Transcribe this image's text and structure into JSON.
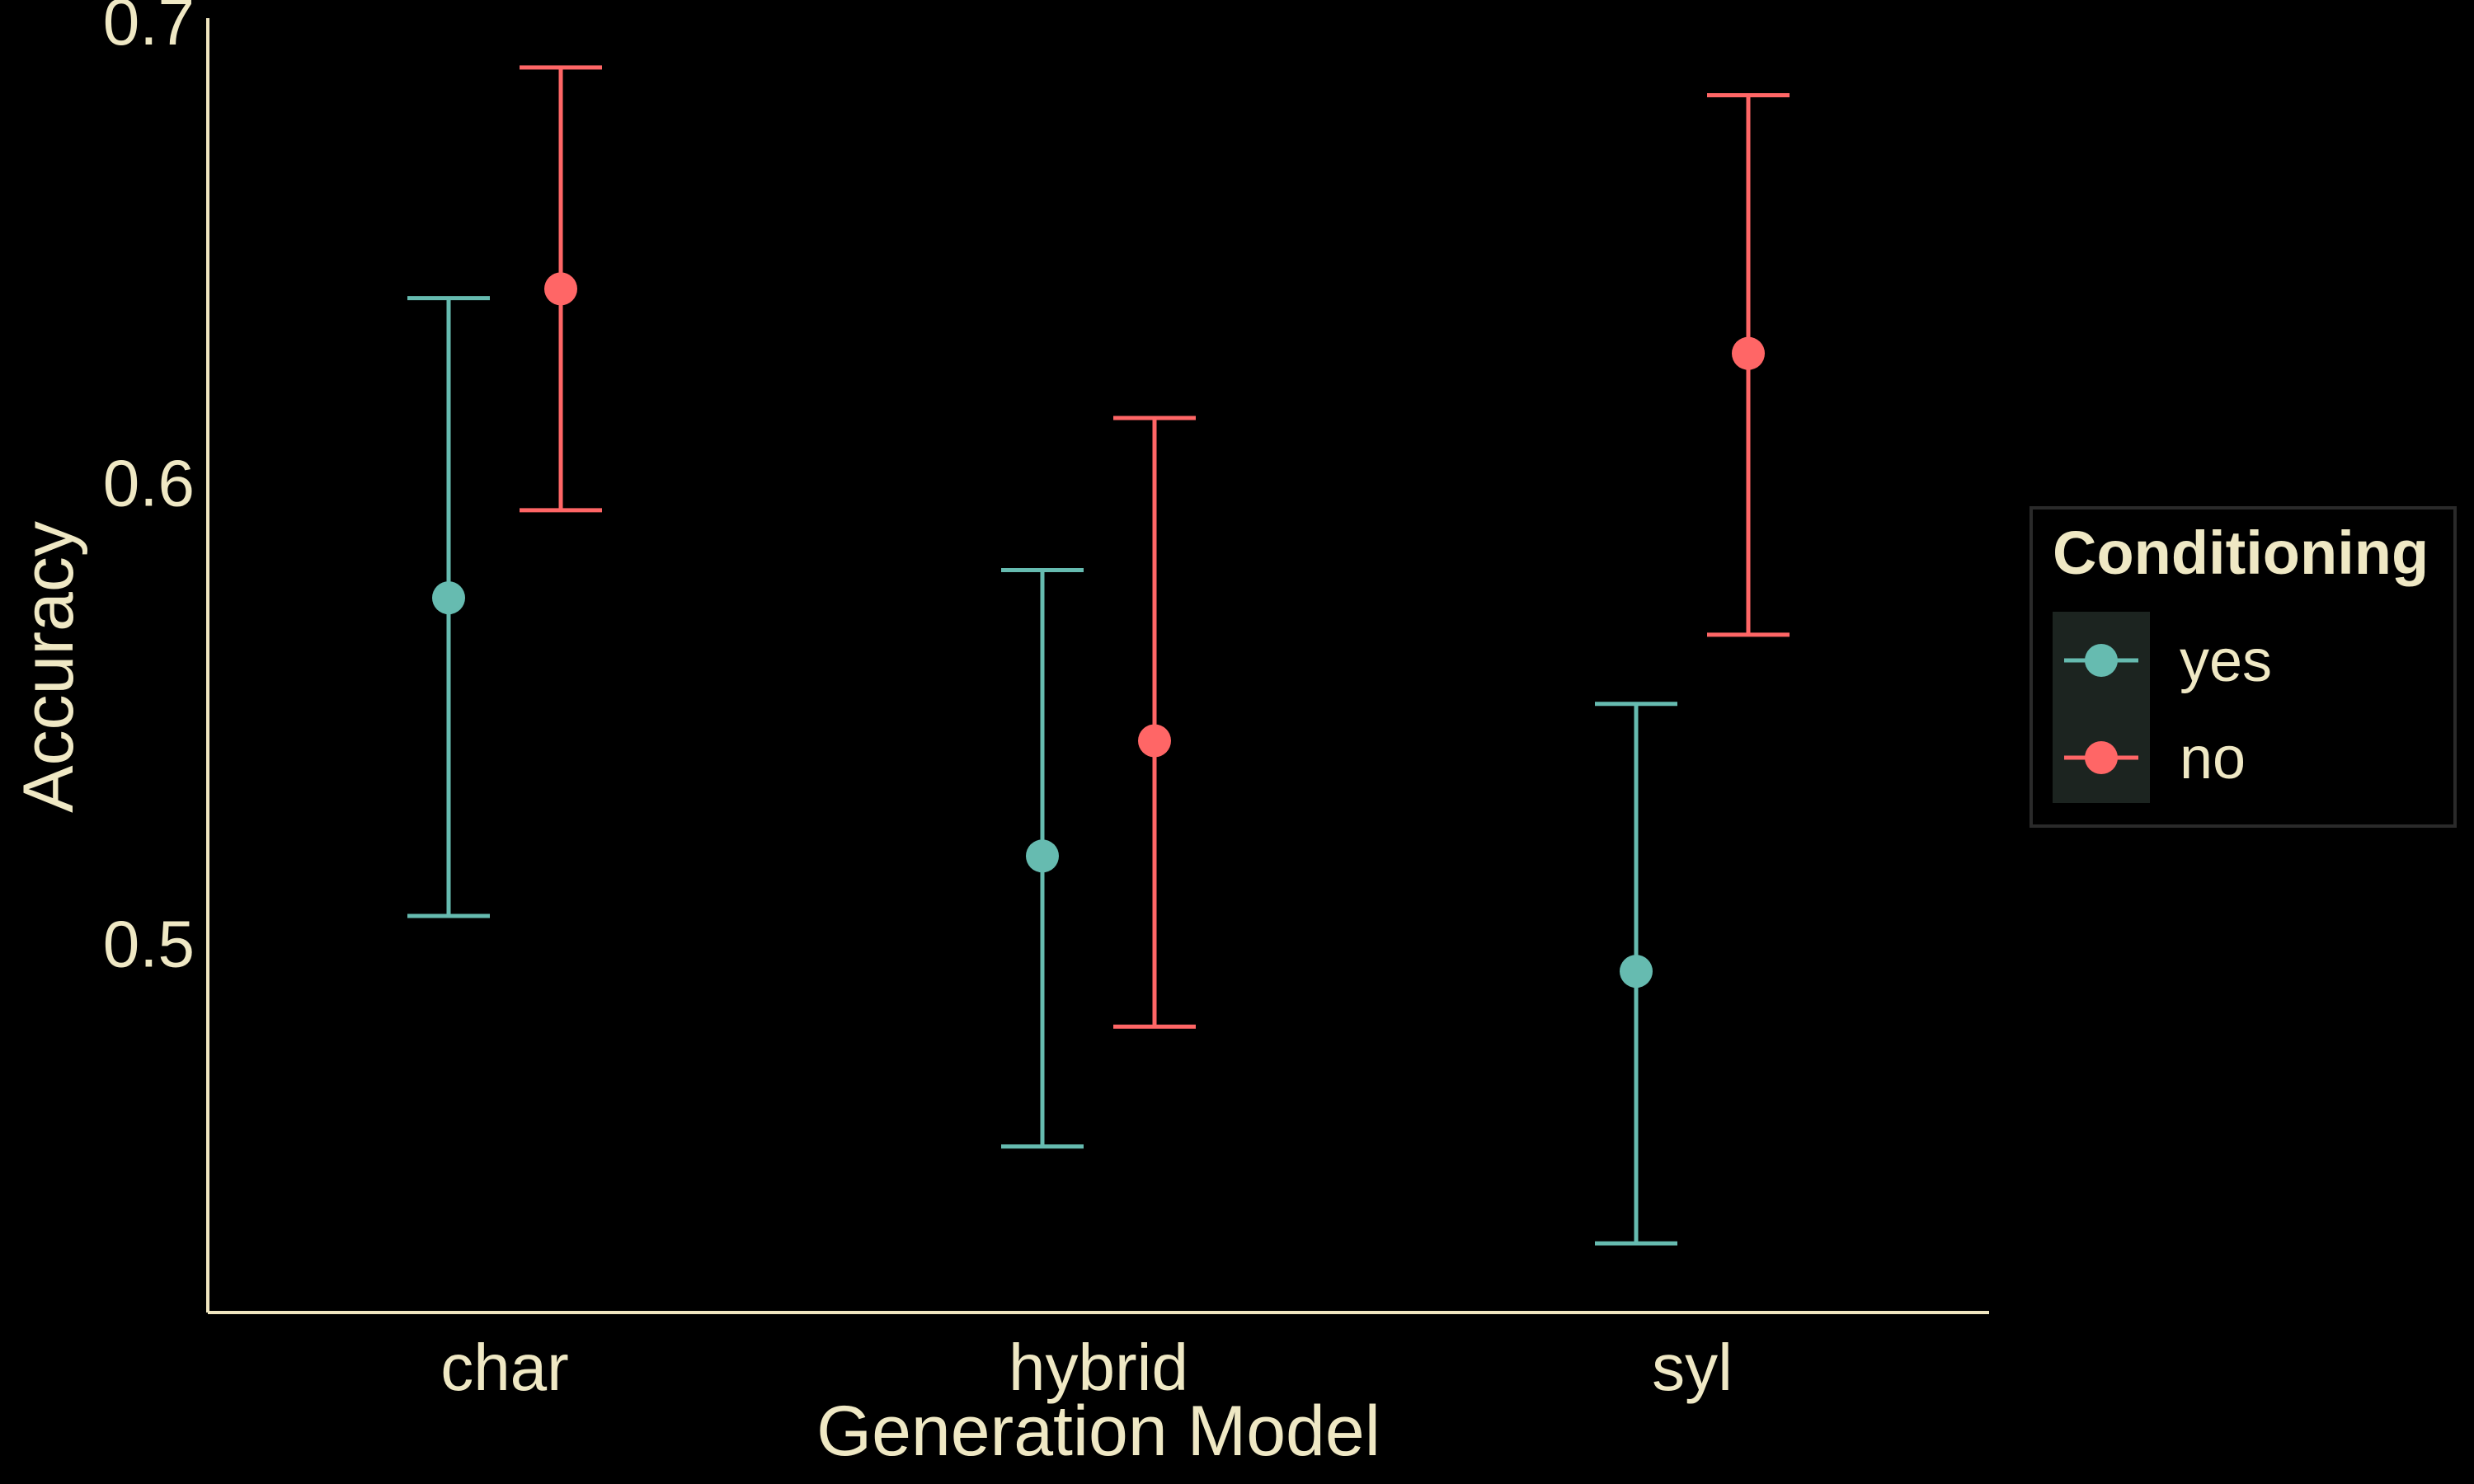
{
  "colors": {
    "background": "#000000",
    "axis": "#f0e6c0",
    "text": "#efe8c4",
    "legend_key_bg": "#1c2420",
    "legend_border": "#2a2a2a"
  },
  "chart_data": {
    "type": "scatter",
    "subtype": "point-with-errorbars",
    "xlabel": "Generation Model",
    "ylabel": "Accuracy",
    "categories": [
      "char",
      "hybrid",
      "syl"
    ],
    "ylim": [
      0.42,
      0.7
    ],
    "yticks": [
      0.5,
      0.6,
      0.7
    ],
    "ytick_labels": [
      "0.5",
      "0.6",
      "0.7"
    ],
    "grid": false,
    "legend": {
      "title": "Conditioning",
      "placement": "right"
    },
    "series": [
      {
        "name": "yes",
        "color": "#66bbb0",
        "values": [
          0.575,
          0.519,
          0.494
        ],
        "lower": [
          0.506,
          0.456,
          0.435
        ],
        "upper": [
          0.64,
          0.581,
          0.552
        ]
      },
      {
        "name": "no",
        "color": "#ff6666",
        "values": [
          0.642,
          0.544,
          0.628
        ],
        "lower": [
          0.594,
          0.482,
          0.567
        ],
        "upper": [
          0.69,
          0.614,
          0.684
        ]
      }
    ]
  }
}
